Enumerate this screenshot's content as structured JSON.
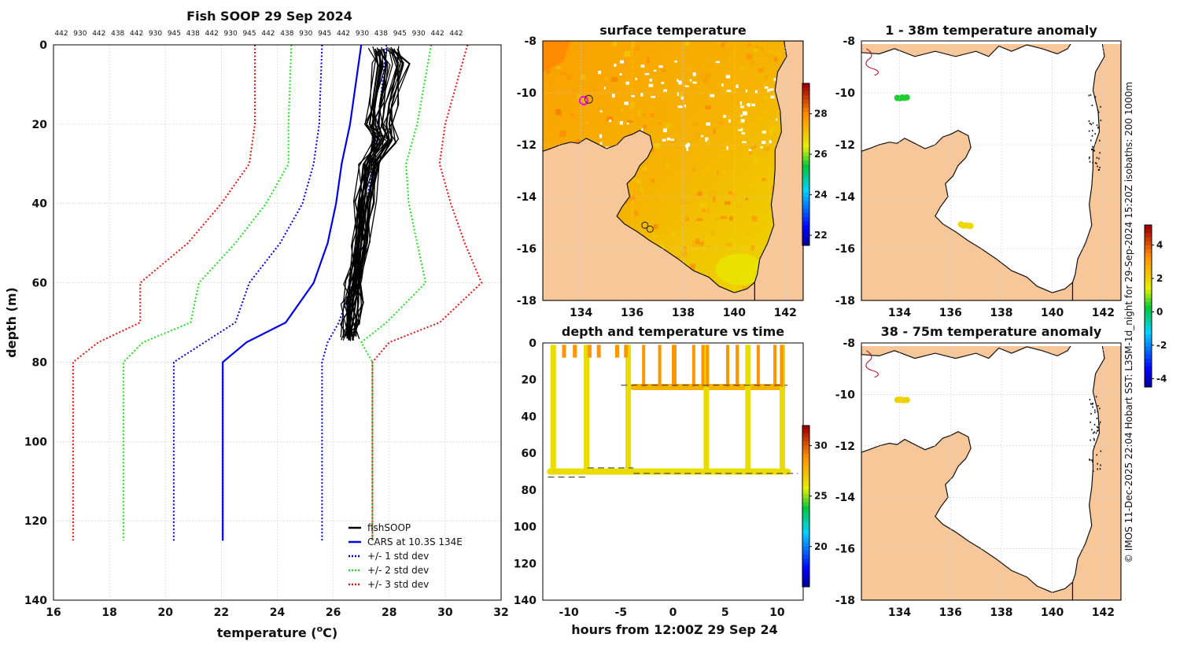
{
  "chart_data": [
    {
      "type": "line",
      "title": "Fish SOOP 29 Sep 2024",
      "xlabel_text": "temperature (",
      "xlabel_sup": "o",
      "xlabel_unit": "C)",
      "ylabel": "depth (m)",
      "xlim": [
        16,
        32
      ],
      "ylim": [
        140,
        0
      ],
      "xticks": [
        16,
        18,
        20,
        22,
        24,
        26,
        28,
        30,
        32
      ],
      "yticks": [
        0,
        20,
        40,
        60,
        80,
        100,
        120,
        140
      ],
      "top_labels": [
        "442",
        "930",
        "442",
        "438",
        "442",
        "930",
        "945",
        "438",
        "442",
        "930",
        "945",
        "442",
        "438",
        "930",
        "945",
        "442",
        "930",
        "438",
        "945",
        "930",
        "442",
        "442"
      ],
      "legend": [
        {
          "label": "fishSOOP",
          "color": "#000000",
          "style": "solid"
        },
        {
          "label": "CARS at 10.3S 134E",
          "color": "#0000ee",
          "style": "solid"
        },
        {
          "label": "+/- 1 std dev",
          "color": "#0000ee",
          "style": "dotted"
        },
        {
          "label": "+/- 2 std dev",
          "color": "#22dd22",
          "style": "dotted"
        },
        {
          "label": "+/- 3 std dev",
          "color": "#ee1111",
          "style": "dotted"
        }
      ],
      "depths": [
        0,
        20,
        30,
        40,
        50,
        60,
        70,
        75,
        80,
        125
      ],
      "series": [
        {
          "name": "CARS at 10.3S 134E",
          "color": "#0000ee",
          "style": "solid",
          "values": [
            27.0,
            26.6,
            26.3,
            26.1,
            25.8,
            25.3,
            24.3,
            22.9,
            22.05,
            22.05
          ]
        },
        {
          "name": "+1 std dev",
          "color": "#0000ee",
          "style": "dotted",
          "values": [
            27.9,
            27.6,
            27.4,
            27.2,
            27.0,
            26.7,
            26.2,
            25.8,
            25.6,
            25.6
          ]
        },
        {
          "name": "-1 std dev",
          "color": "#0000ee",
          "style": "dotted",
          "values": [
            25.6,
            25.5,
            25.3,
            24.9,
            24.1,
            23.0,
            22.5,
            21.4,
            20.3,
            20.3
          ]
        },
        {
          "name": "+2 std dev",
          "color": "#22dd22",
          "style": "dotted",
          "values": [
            29.5,
            29.0,
            28.6,
            28.7,
            29.0,
            29.3,
            27.9,
            27.0,
            27.4,
            27.4
          ]
        },
        {
          "name": "-2 std dev",
          "color": "#22dd22",
          "style": "dotted",
          "values": [
            24.5,
            24.4,
            24.4,
            23.6,
            22.5,
            21.2,
            20.9,
            19.2,
            18.5,
            18.5
          ]
        },
        {
          "name": "+3 std dev",
          "color": "#ee1111",
          "style": "dotted",
          "values": [
            30.8,
            30.0,
            29.8,
            30.2,
            30.7,
            31.3,
            29.8,
            28.0,
            27.4,
            27.4
          ]
        },
        {
          "name": "-3 std dev",
          "color": "#ee1111",
          "style": "dotted",
          "values": [
            23.2,
            23.2,
            23.0,
            22.0,
            20.8,
            19.1,
            19.1,
            17.6,
            16.7,
            16.7
          ]
        }
      ],
      "fishsoop_profiles": [
        {
          "depths": [
            1,
            5,
            15,
            20,
            24,
            30,
            40,
            50,
            60,
            65,
            70,
            74
          ],
          "values": [
            27.5,
            27.6,
            27.4,
            27.3,
            27.6,
            27.1,
            26.9,
            26.8,
            26.6,
            26.5,
            26.5,
            26.5
          ]
        },
        {
          "depths": [
            1,
            5,
            15,
            20,
            24,
            30,
            40,
            50,
            60,
            65,
            70,
            74
          ],
          "values": [
            27.8,
            27.9,
            27.7,
            27.6,
            27.8,
            27.3,
            27.1,
            27.0,
            26.8,
            26.7,
            26.6,
            26.6
          ]
        },
        {
          "depths": [
            1,
            5,
            15,
            20,
            24,
            30,
            40,
            50,
            60,
            65,
            70,
            74
          ],
          "values": [
            28.1,
            28.3,
            28.0,
            27.9,
            28.0,
            27.5,
            27.2,
            27.0,
            26.9,
            26.8,
            26.7,
            26.6
          ]
        },
        {
          "depths": [
            1,
            5,
            15,
            20,
            24,
            30,
            40,
            50,
            60,
            65,
            70,
            74
          ],
          "values": [
            28.3,
            28.5,
            28.1,
            28.0,
            28.1,
            27.6,
            27.3,
            27.1,
            26.9,
            26.9,
            26.8,
            26.7
          ]
        },
        {
          "depths": [
            1,
            5,
            15,
            20,
            24,
            30,
            40,
            50,
            60,
            65,
            70,
            74
          ],
          "values": [
            27.6,
            27.7,
            27.5,
            27.4,
            27.5,
            27.2,
            27.0,
            26.9,
            26.7,
            26.6,
            26.6,
            26.5
          ]
        }
      ]
    },
    {
      "type": "heatmap",
      "title": "surface temperature",
      "xlim": [
        132.5,
        142.7
      ],
      "ylim": [
        -18,
        -8
      ],
      "xticks": [
        134,
        136,
        138,
        140,
        142
      ],
      "yticks": [
        -8,
        -10,
        -12,
        -14,
        -16,
        -18
      ],
      "colorbar_range": [
        21.5,
        29.5
      ],
      "colorbar_ticks": [
        22,
        24,
        26,
        28
      ]
    },
    {
      "type": "scatter",
      "title": "depth and temperature vs time",
      "xlabel": "hours from 12:00Z 29 Sep 24",
      "xlim": [
        -12.5,
        12.5
      ],
      "ylim": [
        140,
        0
      ],
      "xticks": [
        -10,
        -5,
        0,
        5,
        10
      ],
      "yticks": [
        0,
        20,
        40,
        60,
        80,
        100,
        120,
        140
      ],
      "colorbar_range": [
        16,
        32
      ],
      "colorbar_ticks": [
        20,
        25,
        30
      ],
      "dive_hours": [
        -11.5,
        -8.3,
        -4.3,
        3.2,
        7.2,
        10.5
      ],
      "shallow_band_depth": 24,
      "deep_band_depth": 70
    },
    {
      "type": "scatter",
      "title": "1 - 38m temperature anomaly",
      "xlim": [
        132.5,
        142.7
      ],
      "ylim": [
        -18,
        -8
      ],
      "xticks": [
        134,
        136,
        138,
        140,
        142
      ],
      "yticks": [
        -8,
        -10,
        -12,
        -14,
        -16,
        -18
      ],
      "points": [
        {
          "lon": 134.1,
          "lat": -10.2,
          "anomaly": 0.5
        },
        {
          "lon": 136.6,
          "lat": -15.1,
          "anomaly": 2.0
        }
      ]
    },
    {
      "type": "scatter",
      "title": "38 - 75m temperature anomaly",
      "xlim": [
        132.5,
        142.7
      ],
      "ylim": [
        -18,
        -8
      ],
      "xticks": [
        134,
        136,
        138,
        140,
        142
      ],
      "yticks": [
        -8,
        -10,
        -12,
        -14,
        -16,
        -18
      ],
      "colorbar_range": [
        -4.5,
        5.2
      ],
      "colorbar_ticks": [
        -4,
        -2,
        0,
        2,
        4
      ],
      "points": [
        {
          "lon": 134.1,
          "lat": -10.2,
          "anomaly": 2.1
        }
      ]
    }
  ],
  "credit": "© IMOS 11-Dec-2025 22:04 Hobart SST: L3SM-1d_night for 29-Sep-2024 15:20Z isobaths: 200  1000m"
}
